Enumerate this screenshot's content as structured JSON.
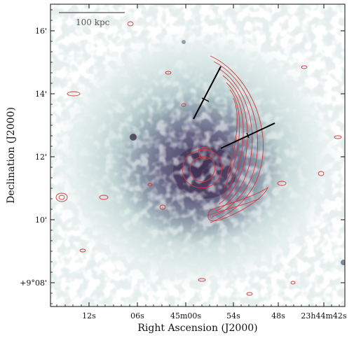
{
  "figure": {
    "x_axis_label": "Right Ascension (J2000)",
    "y_axis_label": "Declination (J2000)",
    "x_ticks": [
      "12s",
      "06s",
      "45m00s",
      "54s",
      "48s",
      "23h44m42s"
    ],
    "y_ticks": [
      "16'",
      "14'",
      "12'",
      "10'",
      "+9°08'"
    ],
    "scale_bar_label": "100 kpc",
    "colors": {
      "emission": "#6d7a98",
      "emission_core": "#4a3f66",
      "halo": "#c7dcda",
      "contours": "#d43a3a",
      "frame": "#111111",
      "markers": "#000000"
    }
  }
}
